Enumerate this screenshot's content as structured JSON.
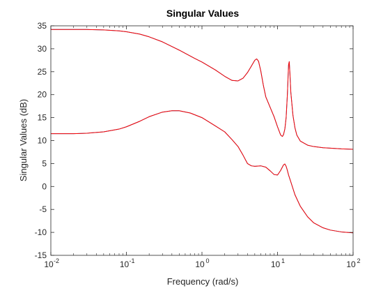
{
  "colors": {
    "background": "#ffffff",
    "axes": "#262626",
    "series_blue": "#0072BD",
    "series_red": "#FF0000"
  },
  "chart_data": {
    "type": "line",
    "title": "Singular Values",
    "xlabel": "Frequency (rad/s)",
    "ylabel": "Singular Values (dB)",
    "xscale": "log",
    "xlim": [
      0.01,
      100
    ],
    "ylim": [
      -15,
      35
    ],
    "grid": false,
    "box": true,
    "x_ticks": [
      {
        "base": "10",
        "exp": "-2"
      },
      {
        "base": "10",
        "exp": "-1"
      },
      {
        "base": "10",
        "exp": "0"
      },
      {
        "base": "10",
        "exp": "1"
      },
      {
        "base": "10",
        "exp": "2"
      }
    ],
    "y_ticks": [
      "35",
      "30",
      "25",
      "20",
      "15",
      "10",
      "5",
      "0",
      "-5",
      "-10",
      "-15"
    ],
    "series": [
      {
        "color": "#0072BD",
        "x": [
          0.01,
          0.02,
          0.03,
          0.05,
          0.08,
          0.1,
          0.15,
          0.2,
          0.3,
          0.5,
          0.8,
          1.0,
          1.5,
          2.0,
          2.5,
          3.0,
          3.5,
          4.0,
          4.5,
          5.0,
          5.3,
          5.6,
          6.0,
          6.5,
          7.0,
          8.0,
          9.0,
          10.0,
          11.0,
          11.6,
          12.0,
          12.5,
          13.0,
          13.5,
          14.0,
          14.3,
          14.6,
          15.0,
          16.0,
          17.0,
          18.0,
          20.0,
          25.0,
          30.0,
          40.0,
          50.0,
          70.0,
          100.0
        ],
        "y": [
          34.2,
          34.2,
          34.2,
          34.1,
          33.9,
          33.7,
          33.2,
          32.6,
          31.5,
          29.7,
          27.9,
          27.1,
          25.4,
          24.0,
          23.1,
          23.0,
          23.6,
          24.8,
          26.2,
          27.5,
          27.8,
          27.3,
          25.2,
          22.0,
          19.5,
          17.2,
          15.2,
          13.0,
          11.2,
          10.9,
          11.3,
          12.5,
          15.0,
          20.0,
          26.5,
          27.2,
          24.5,
          20.5,
          15.5,
          12.8,
          11.2,
          9.9,
          9.0,
          8.7,
          8.45,
          8.35,
          8.2,
          8.1
        ]
      },
      {
        "color": "#0072BD",
        "x": [
          0.01,
          0.02,
          0.03,
          0.05,
          0.08,
          0.1,
          0.15,
          0.2,
          0.3,
          0.4,
          0.5,
          0.7,
          1.0,
          1.5,
          2.0,
          2.5,
          3.0,
          3.5,
          4.0,
          4.5,
          5.0,
          6.0,
          7.0,
          8.0,
          9.0,
          10.0,
          11.0,
          12.0,
          12.5,
          13.0,
          13.5,
          14.0,
          15.0,
          17.0,
          20.0,
          25.0,
          30.0,
          40.0,
          50.0,
          70.0,
          100.0
        ],
        "y": [
          11.5,
          11.5,
          11.6,
          11.9,
          12.5,
          13.0,
          14.2,
          15.2,
          16.2,
          16.5,
          16.5,
          16.0,
          15.0,
          13.2,
          11.9,
          10.2,
          8.7,
          6.8,
          5.0,
          4.5,
          4.4,
          4.5,
          4.2,
          3.4,
          2.6,
          2.5,
          3.5,
          4.7,
          4.9,
          4.4,
          3.5,
          2.5,
          1.0,
          -1.8,
          -4.3,
          -6.6,
          -7.9,
          -9.0,
          -9.5,
          -9.9,
          -10.1
        ]
      },
      {
        "color": "#FF0000",
        "x": [
          0.01,
          0.02,
          0.03,
          0.05,
          0.08,
          0.1,
          0.15,
          0.2,
          0.3,
          0.5,
          0.8,
          1.0,
          1.5,
          2.0,
          2.5,
          3.0,
          3.5,
          4.0,
          4.5,
          5.0,
          5.3,
          5.6,
          6.0,
          6.5,
          7.0,
          8.0,
          9.0,
          10.0,
          11.0,
          11.6,
          12.0,
          12.5,
          13.0,
          13.5,
          14.0,
          14.3,
          14.6,
          15.0,
          16.0,
          17.0,
          18.0,
          20.0,
          25.0,
          30.0,
          40.0,
          50.0,
          70.0,
          100.0
        ],
        "y": [
          34.2,
          34.2,
          34.2,
          34.1,
          33.9,
          33.7,
          33.2,
          32.6,
          31.5,
          29.7,
          27.9,
          27.1,
          25.4,
          24.0,
          23.1,
          23.0,
          23.6,
          24.8,
          26.2,
          27.5,
          27.8,
          27.3,
          25.2,
          22.0,
          19.5,
          17.2,
          15.2,
          13.0,
          11.2,
          10.9,
          11.3,
          12.5,
          15.0,
          20.0,
          26.5,
          27.2,
          24.5,
          20.5,
          15.5,
          12.8,
          11.2,
          9.9,
          9.0,
          8.7,
          8.45,
          8.35,
          8.2,
          8.1
        ]
      },
      {
        "color": "#FF0000",
        "x": [
          0.01,
          0.02,
          0.03,
          0.05,
          0.08,
          0.1,
          0.15,
          0.2,
          0.3,
          0.4,
          0.5,
          0.7,
          1.0,
          1.5,
          2.0,
          2.5,
          3.0,
          3.5,
          4.0,
          4.5,
          5.0,
          6.0,
          7.0,
          8.0,
          9.0,
          10.0,
          11.0,
          12.0,
          12.5,
          13.0,
          13.5,
          14.0,
          15.0,
          17.0,
          20.0,
          25.0,
          30.0,
          40.0,
          50.0,
          70.0,
          100.0
        ],
        "y": [
          11.5,
          11.5,
          11.6,
          11.9,
          12.5,
          13.0,
          14.2,
          15.2,
          16.2,
          16.5,
          16.5,
          16.0,
          15.0,
          13.2,
          11.9,
          10.2,
          8.7,
          6.8,
          5.0,
          4.5,
          4.4,
          4.5,
          4.2,
          3.4,
          2.6,
          2.5,
          3.5,
          4.7,
          4.9,
          4.4,
          3.5,
          2.5,
          1.0,
          -1.8,
          -4.3,
          -6.6,
          -7.9,
          -9.0,
          -9.5,
          -9.9,
          -10.1
        ]
      }
    ]
  }
}
